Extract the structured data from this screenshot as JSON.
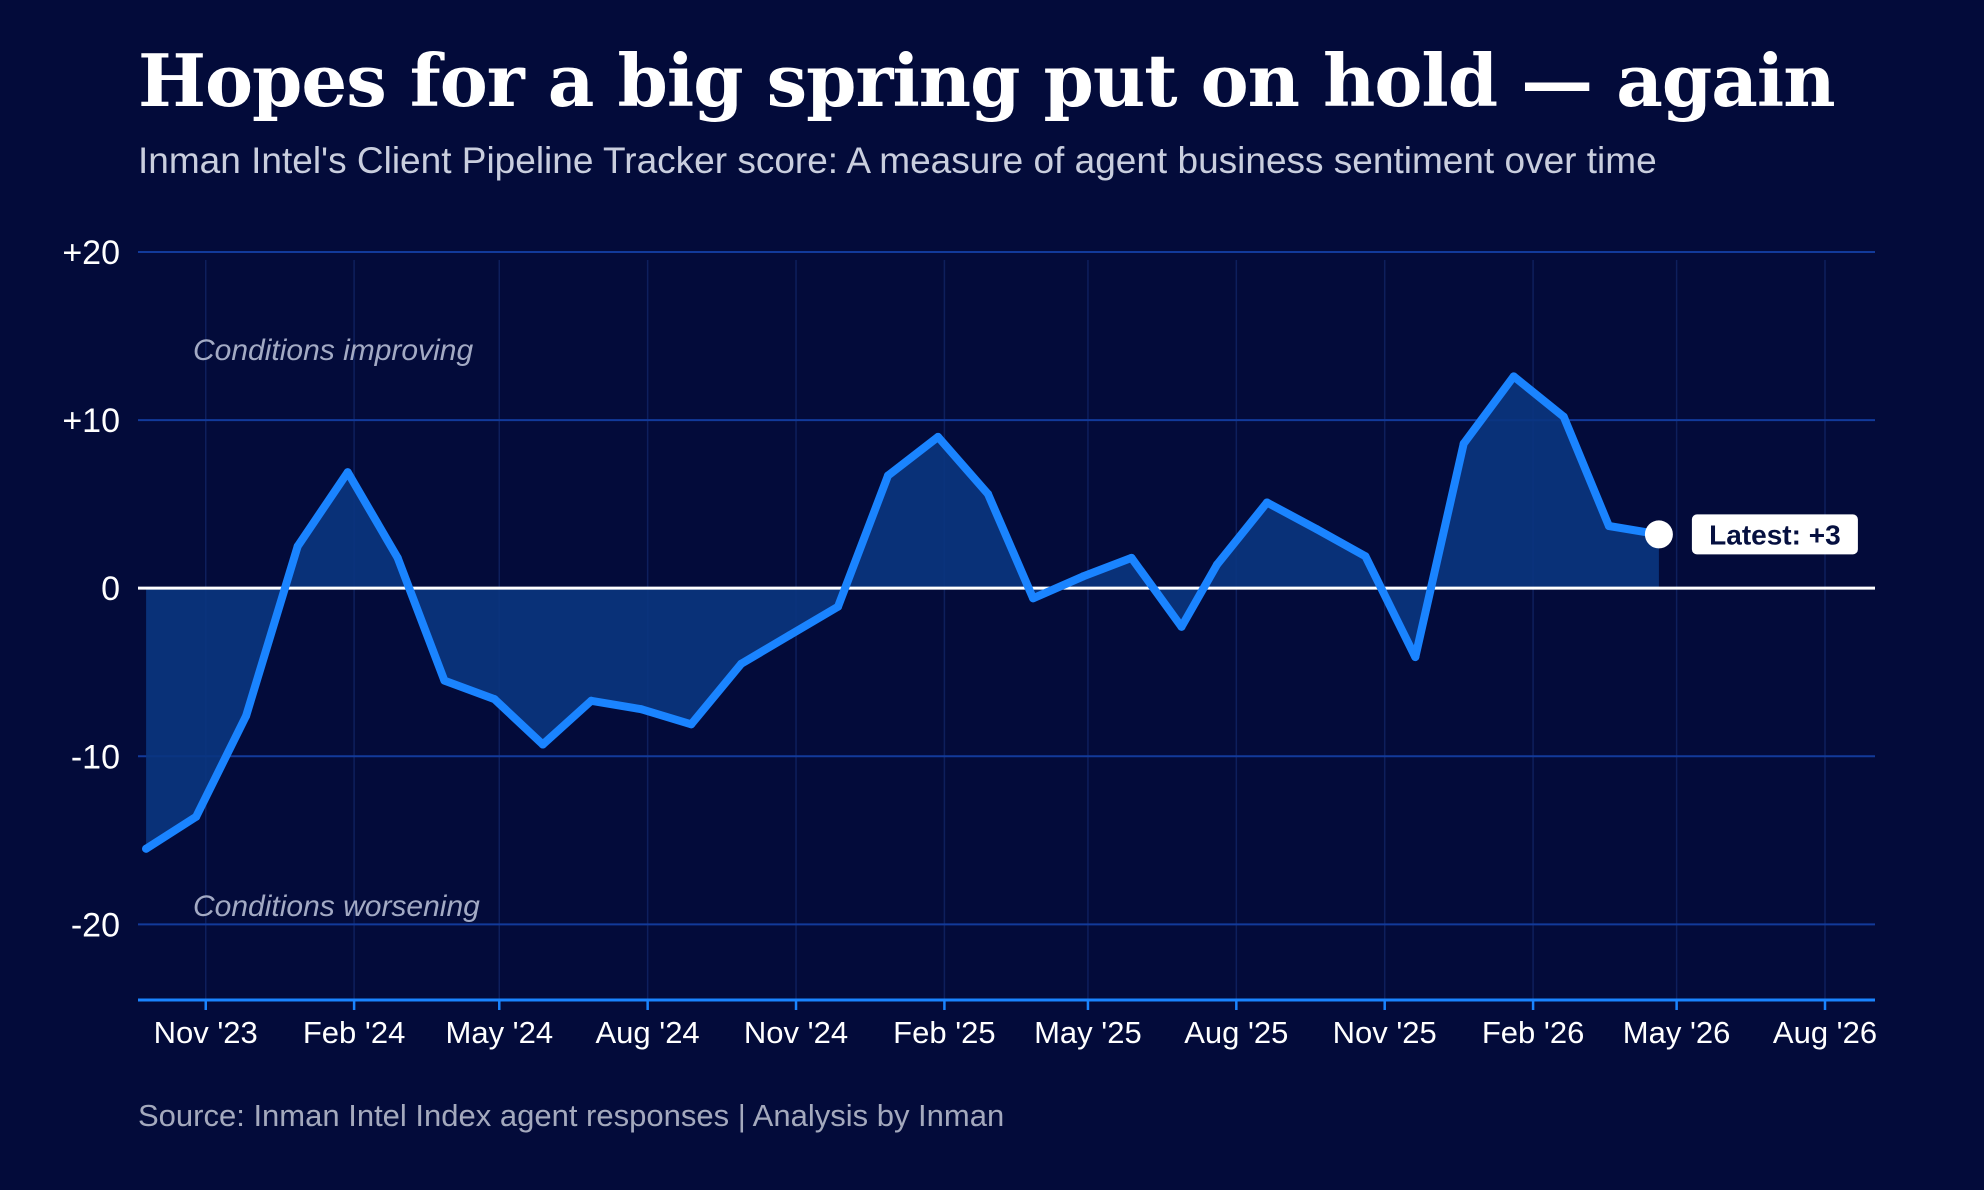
{
  "header": {
    "title": "Hopes for a big spring put on hold — again",
    "subtitle": "Inman Intel's Client Pipeline Tracker score: A measure of agent business sentiment over time"
  },
  "footer": {
    "source": "Source: Inman Intel Index agent responses | Analysis by Inman"
  },
  "colors": {
    "background": "#030b3a",
    "line": "#1a84ff",
    "area": "#0a3580",
    "gridline": "#123a9a",
    "zero_line": "#ffffff"
  },
  "chart_data": {
    "type": "area",
    "title": "Hopes for a big spring put on hold — again",
    "subtitle": "Inman Intel's Client Pipeline Tracker score: A measure of agent business sentiment over time",
    "xlabel": "",
    "ylabel": "",
    "x_tick_labels": [
      "Nov '23",
      "Feb '24",
      "May '24",
      "Aug '24",
      "Nov '24",
      "Feb '25",
      "May '25",
      "Aug '25",
      "Nov '25",
      "Feb '26",
      "May '26",
      "Aug '26"
    ],
    "y_tick_labels": [
      "+20",
      "+10",
      "0",
      "-10",
      "-20"
    ],
    "y_ticks": [
      20,
      10,
      0,
      -10,
      -20
    ],
    "ylim": [
      -24.5,
      20
    ],
    "xlim": [
      "2023-09-20",
      "2026-09-01"
    ],
    "grid": true,
    "zone_annotations": [
      "Conditions improving",
      "Conditions worsening"
    ],
    "latest_label": "Latest: +3",
    "series": [
      {
        "x": [
          "2023-09-25",
          "2023-10-26",
          "2023-11-26",
          "2023-12-28",
          "2024-01-28",
          "2024-02-28",
          "2024-03-28",
          "2024-04-28",
          "2024-05-28",
          "2024-06-27",
          "2024-07-28",
          "2024-08-28",
          "2024-09-28",
          "2024-10-28",
          "2024-11-27",
          "2024-12-28",
          "2025-01-28",
          "2025-02-28",
          "2025-03-28",
          "2025-04-28",
          "2025-05-28",
          "2025-06-28",
          "2025-07-20",
          "2025-08-20",
          "2025-09-20",
          "2025-10-20",
          "2025-11-20",
          "2025-12-20",
          "2026-01-20",
          "2026-02-20",
          "2026-03-20",
          "2026-04-20"
        ],
        "values": [
          -15.5,
          -13.6,
          -7.6,
          2.5,
          6.9,
          1.8,
          -5.5,
          -6.6,
          -9.3,
          -6.7,
          -7.2,
          -8.1,
          -4.5,
          -2.8,
          -1.1,
          6.7,
          9.0,
          5.6,
          -0.6,
          0.7,
          1.8,
          -2.3,
          1.4,
          5.1,
          3.5,
          1.9,
          -4.1,
          8.6,
          12.6,
          10.2,
          3.7,
          3.2
        ]
      }
    ]
  }
}
